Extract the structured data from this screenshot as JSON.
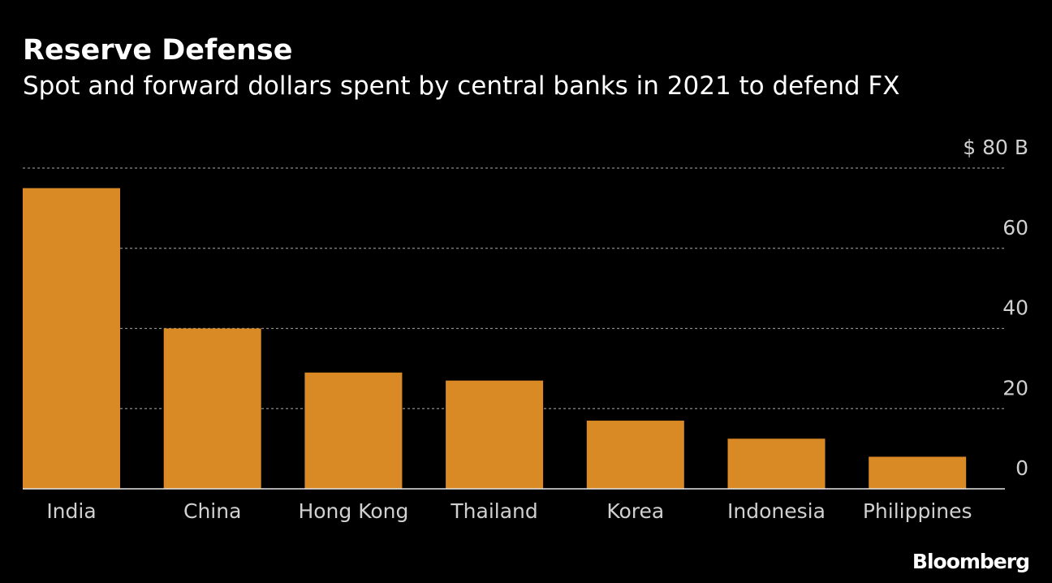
{
  "title": "Reserve Defense",
  "subtitle": "Spot and forward dollars spent by central banks in 2021 to defend FX",
  "source_logo": "Bloomberg",
  "colors": {
    "bar": "#d98a24",
    "background": "#000000",
    "grid": "#8a8a8a",
    "text": "#ffffff",
    "tick_text": "#d0d0d0"
  },
  "chart_data": {
    "type": "bar",
    "title": "Reserve Defense",
    "subtitle": "Spot and forward dollars spent by central banks in 2021 to defend FX",
    "categories": [
      "India",
      "China",
      "Hong Kong",
      "Thailand",
      "Korea",
      "Indonesia",
      "Philippines"
    ],
    "values": [
      75,
      40,
      29,
      27,
      17,
      12.5,
      8
    ],
    "ylim": [
      0,
      80
    ],
    "yticks": [
      0,
      20,
      40,
      60,
      80
    ],
    "ytick_labels": [
      "0",
      "20",
      "40",
      "60",
      "$ 80  B"
    ],
    "xlabel": "",
    "ylabel": "",
    "grid": true,
    "legend": "none"
  }
}
